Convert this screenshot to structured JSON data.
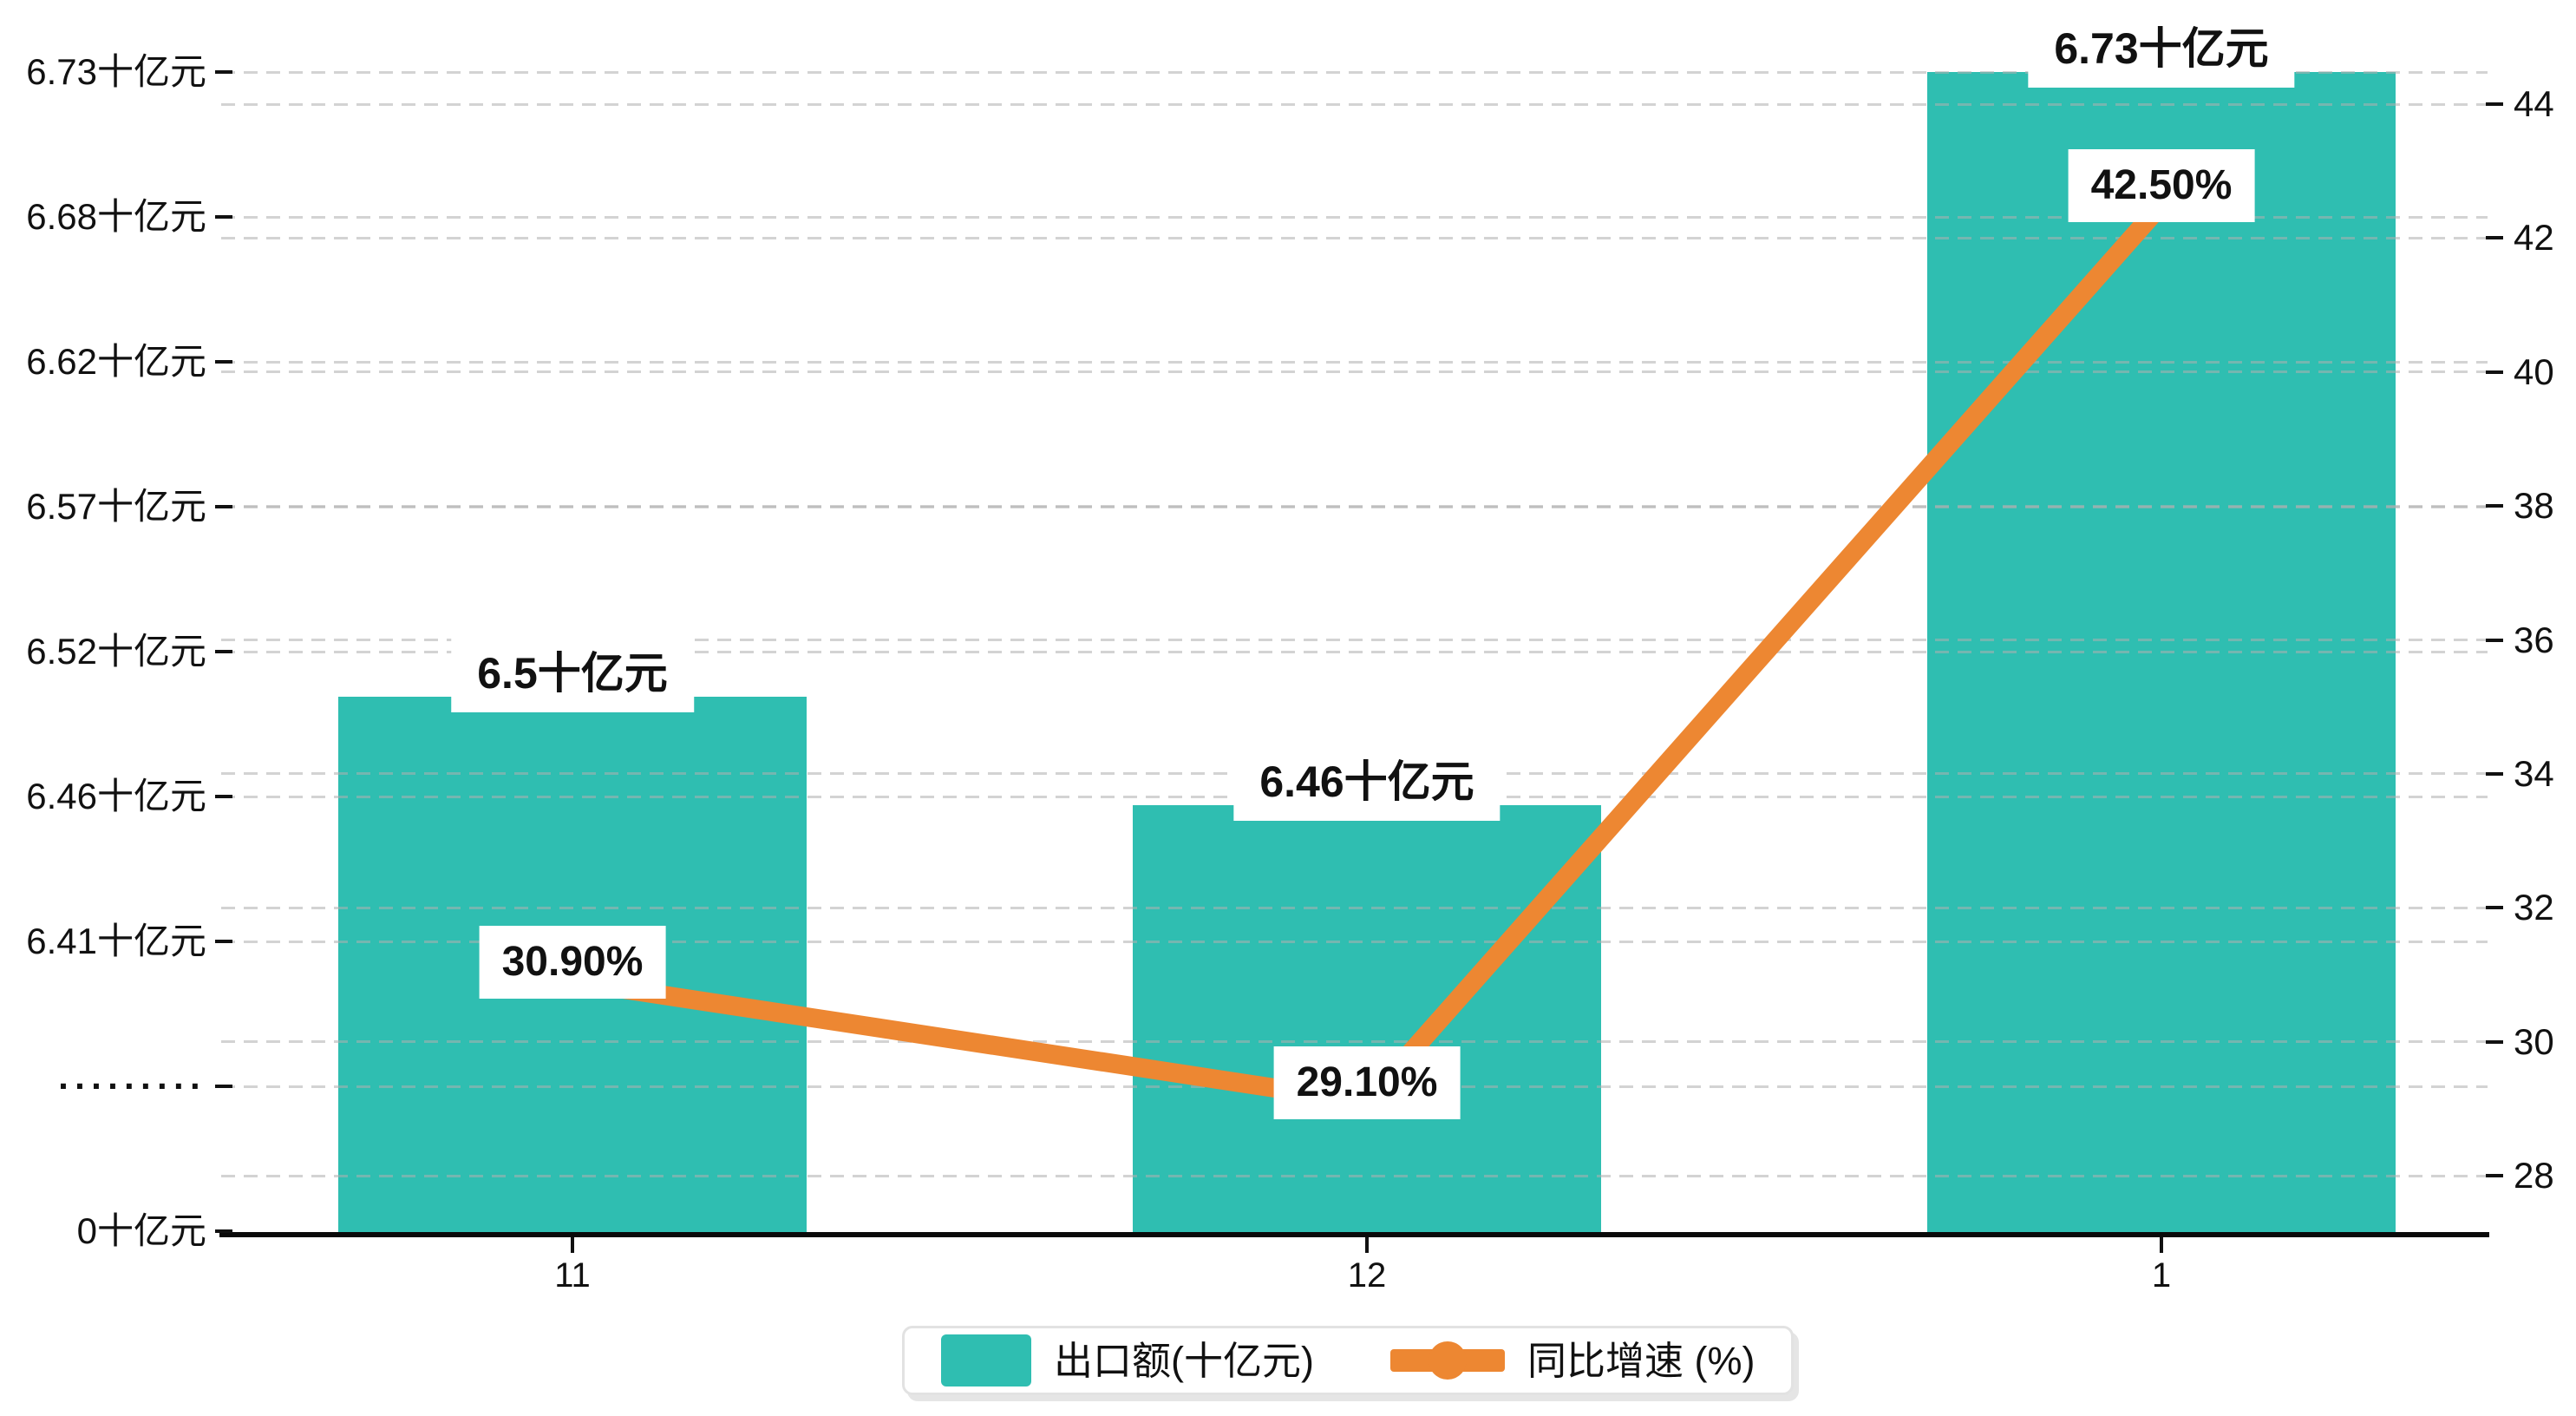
{
  "chart_data": {
    "type": "combo",
    "categories": [
      "11",
      "12",
      "1"
    ],
    "series": [
      {
        "name": "出口额(十亿元)",
        "type": "bar",
        "axis": "left",
        "values": [
          6.5,
          6.46,
          6.73
        ],
        "labels": [
          "6.5十亿元",
          "6.46十亿元",
          "6.73十亿元"
        ],
        "color": "#2FBEB1"
      },
      {
        "name": "同比增速 (%)",
        "type": "line",
        "axis": "right",
        "values": [
          30.9,
          29.1,
          42.5
        ],
        "labels": [
          "30.90%",
          "29.10%",
          "42.50%"
        ],
        "color": "#ED8732"
      }
    ],
    "left_axis": {
      "tick_labels": [
        "0十亿元",
        "·········",
        "6.41十亿元",
        "6.46十亿元",
        "6.52十亿元",
        "6.57十亿元",
        "6.62十亿元",
        "6.68十亿元",
        "6.73十亿元"
      ],
      "broken_axis": true,
      "value_range_upper_segment": [
        6.41,
        6.73
      ]
    },
    "right_axis": {
      "ticks": [
        28,
        30,
        32,
        34,
        36,
        38,
        40,
        42,
        44
      ],
      "range": [
        28,
        44
      ]
    },
    "legend": {
      "entries": [
        "出口额(十亿元)",
        "同比增速 (%)"
      ],
      "position": "bottom"
    },
    "grid": true,
    "colors": {
      "bar": "#2FBEB1",
      "line": "#ED8732",
      "label_background": "#FFFFFF",
      "axis": "#0A0A0A",
      "text": "#111111",
      "gridline": "#D9D9D9",
      "legend_border": "#E2E2E2"
    }
  }
}
